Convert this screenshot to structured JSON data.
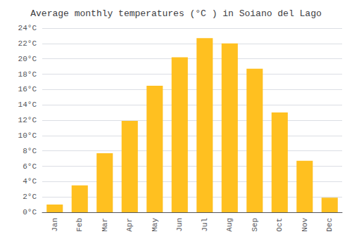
{
  "chart_data": {
    "type": "bar",
    "title": "Average monthly temperatures (°C ) in Soiano del Lago",
    "categories": [
      "Jan",
      "Feb",
      "Mar",
      "Apr",
      "May",
      "Jun",
      "Jul",
      "Aug",
      "Sep",
      "Oct",
      "Nov",
      "Dec"
    ],
    "values": [
      1.0,
      3.5,
      7.7,
      11.9,
      16.5,
      20.2,
      22.7,
      22.0,
      18.7,
      13.0,
      6.7,
      1.9
    ],
    "color": "#FFC020",
    "ylim": [
      0,
      24
    ],
    "yticks": [
      {
        "value": 0,
        "label": "0°C"
      },
      {
        "value": 2,
        "label": "2°C"
      },
      {
        "value": 4,
        "label": "4°C"
      },
      {
        "value": 6,
        "label": "6°C"
      },
      {
        "value": 8,
        "label": "8°C"
      },
      {
        "value": 10,
        "label": "10°C"
      },
      {
        "value": 12,
        "label": "12°C"
      },
      {
        "value": 14,
        "label": "14°C"
      },
      {
        "value": 16,
        "label": "16°C"
      },
      {
        "value": 18,
        "label": "18°C"
      },
      {
        "value": 20,
        "label": "20°C"
      },
      {
        "value": 22,
        "label": "22°C"
      },
      {
        "value": 24,
        "label": "24°C"
      }
    ],
    "grid": true
  }
}
